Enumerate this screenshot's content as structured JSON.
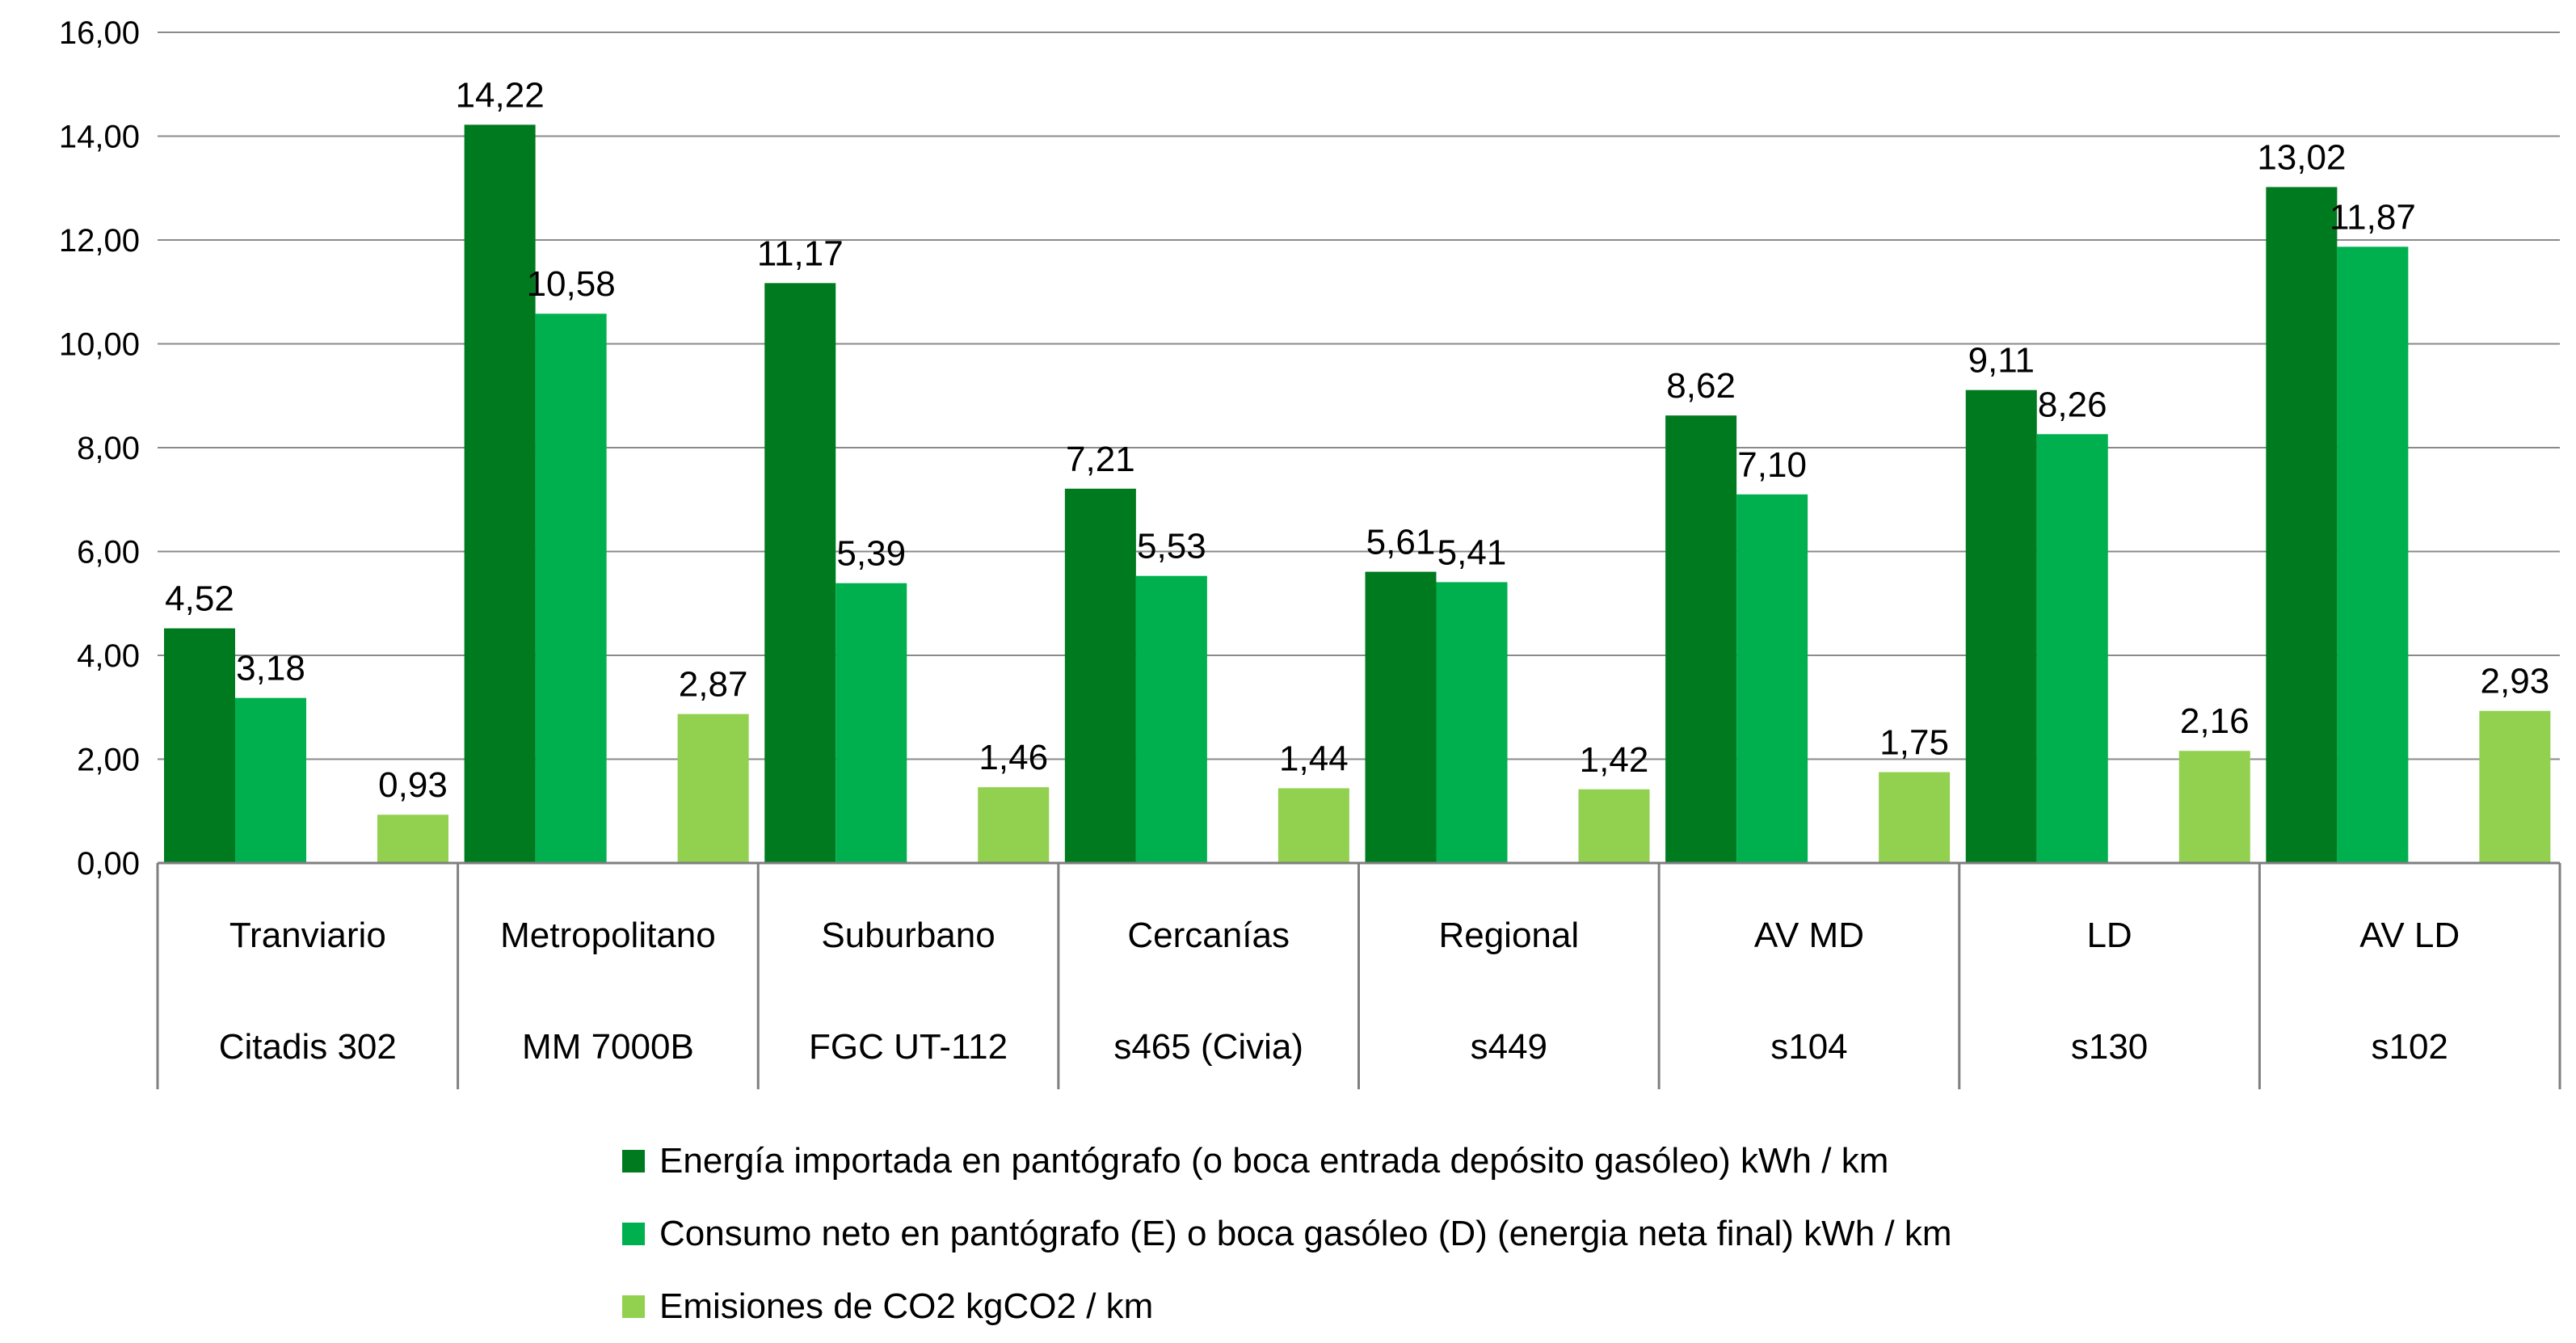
{
  "chart_data": {
    "type": "bar",
    "categories": [
      {
        "name": "Tranviario",
        "model": "Citadis 302"
      },
      {
        "name": "Metropolitano",
        "model": "MM 7000B"
      },
      {
        "name": "Suburbano",
        "model": "FGC UT-112"
      },
      {
        "name": "Cercanías",
        "model": "s465 (Civia)"
      },
      {
        "name": "Regional",
        "model": "s449"
      },
      {
        "name": "AV MD",
        "model": "s104"
      },
      {
        "name": "LD",
        "model": "s130"
      },
      {
        "name": "AV LD",
        "model": "s102"
      }
    ],
    "series": [
      {
        "name": "Energía importada en pantógrafo (o boca entrada depósito gasóleo) kWh / km",
        "color": "#007a1f",
        "values": [
          4.52,
          14.22,
          11.17,
          7.21,
          5.61,
          8.62,
          9.11,
          13.02
        ],
        "labels": [
          "4,52",
          "14,22",
          "11,17",
          "7,21",
          "5,61",
          "8,62",
          "9,11",
          "13,02"
        ]
      },
      {
        "name": "Consumo neto en pantógrafo (E) o boca gasóleo (D) (energia neta final) kWh / km",
        "color": "#00b04f",
        "values": [
          3.18,
          10.58,
          5.39,
          5.53,
          5.41,
          7.1,
          8.26,
          11.87
        ],
        "labels": [
          "3,18",
          "10,58",
          "5,39",
          "5,53",
          "5,41",
          "7,10",
          "8,26",
          "11,87"
        ]
      },
      {
        "name": "Emisiones de CO2 kgCO2 / km",
        "color": "#92d050",
        "values": [
          0.93,
          2.87,
          1.46,
          1.44,
          1.42,
          1.75,
          2.16,
          2.93
        ],
        "labels": [
          "0,93",
          "2,87",
          "1,46",
          "1,44",
          "1,42",
          "1,75",
          "2,16",
          "2,93"
        ]
      }
    ],
    "yticks": [
      "0,00",
      "2,00",
      "4,00",
      "6,00",
      "8,00",
      "10,00",
      "12,00",
      "14,00",
      "16,00"
    ],
    "ylim": [
      0,
      16
    ],
    "grid": true,
    "legend_position": "bottom"
  }
}
